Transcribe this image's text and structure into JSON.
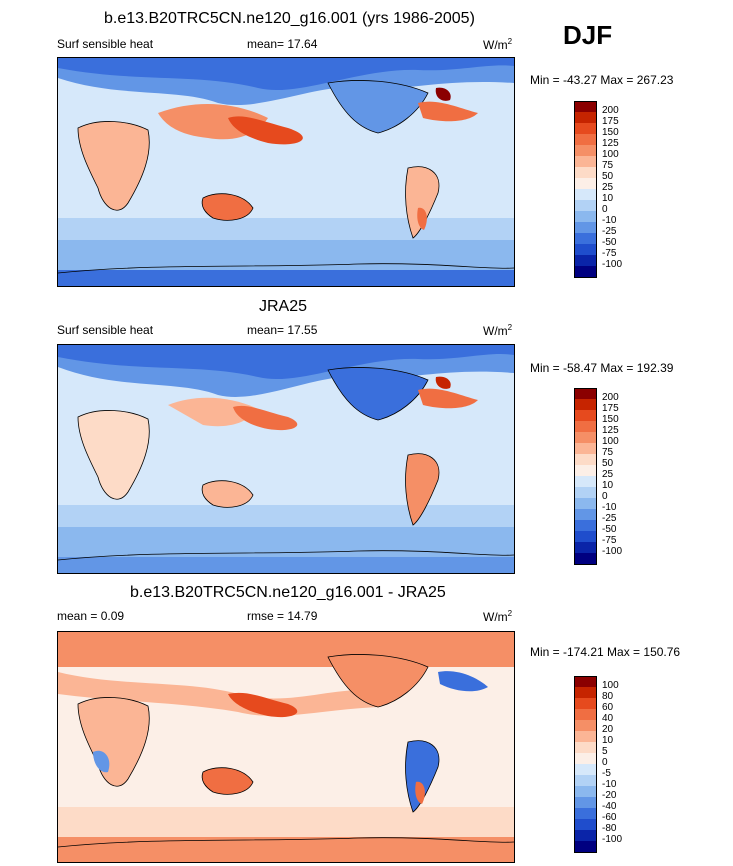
{
  "header": {
    "title": "b.e13.B20TRC5CN.ne120_g16.001 (yrs 1986-2005)",
    "season": "DJF"
  },
  "panels": [
    {
      "id": "model",
      "title": "b.e13.B20TRC5CN.ne120_g16.001 (yrs 1986-2005)",
      "left_label": "Surf sensible heat",
      "center_label": "mean=  17.64",
      "units_base": "W/m",
      "units_sup": "2",
      "minmax": "Min = -43.27 Max = 267.23",
      "legend_labels": [
        "200",
        "175",
        "150",
        "125",
        "100",
        "75",
        "50",
        "25",
        "10",
        "0",
        "-10",
        "-25",
        "-50",
        "-75",
        "-100"
      ],
      "legend_colors": [
        "#8b0000",
        "#c62400",
        "#e64a1e",
        "#f06e42",
        "#f58f66",
        "#fbb595",
        "#fddbc7",
        "#fcefe7",
        "#d6e8fa",
        "#b2d2f5",
        "#8bb8ee",
        "#6296e6",
        "#3a6fdc",
        "#1f4dcc",
        "#0a24a8",
        "#000080"
      ]
    },
    {
      "id": "obs",
      "title": "JRA25",
      "left_label": "Surf sensible heat",
      "center_label": "mean=  17.55",
      "units_base": "W/m",
      "units_sup": "2",
      "minmax": "Min = -58.47 Max = 192.39",
      "legend_labels": [
        "200",
        "175",
        "150",
        "125",
        "100",
        "75",
        "50",
        "25",
        "10",
        "0",
        "-10",
        "-25",
        "-50",
        "-75",
        "-100"
      ],
      "legend_colors": [
        "#8b0000",
        "#c62400",
        "#e64a1e",
        "#f06e42",
        "#f58f66",
        "#fbb595",
        "#fddbc7",
        "#fcefe7",
        "#d6e8fa",
        "#b2d2f5",
        "#8bb8ee",
        "#6296e6",
        "#3a6fdc",
        "#1f4dcc",
        "#0a24a8",
        "#000080"
      ]
    },
    {
      "id": "diff",
      "title": "b.e13.B20TRC5CN.ne120_g16.001 - JRA25",
      "left_label": "mean =   0.09",
      "center_label": "rmse =  14.79",
      "units_base": "W/m",
      "units_sup": "2",
      "minmax": "Min = -174.21 Max = 150.76",
      "legend_labels": [
        "100",
        "80",
        "60",
        "40",
        "20",
        "10",
        "5",
        "0",
        "-5",
        "-10",
        "-20",
        "-40",
        "-60",
        "-80",
        "-100"
      ],
      "legend_colors": [
        "#8b0000",
        "#c62400",
        "#e64a1e",
        "#f06e42",
        "#f58f66",
        "#fbb595",
        "#fddbc7",
        "#fcefe7",
        "#d6e8fa",
        "#b2d2f5",
        "#8bb8ee",
        "#6296e6",
        "#3a6fdc",
        "#1f4dcc",
        "#0a24a8",
        "#000080"
      ]
    }
  ],
  "map_colors": {
    "ocean_model": "#d6e8fa",
    "ocean_obs": "#d6e8fa",
    "ocean_diff": "#fcd6c4",
    "warm_strong": "#e64a1e",
    "warm_mid": "#f58f66",
    "warm_light": "#fbb595",
    "cool_light": "#b2d2f5",
    "cool_mid": "#6296e6",
    "cool_strong": "#3a6fdc",
    "deep_blue": "#1f4dcc",
    "dark_red": "#8b0000"
  }
}
